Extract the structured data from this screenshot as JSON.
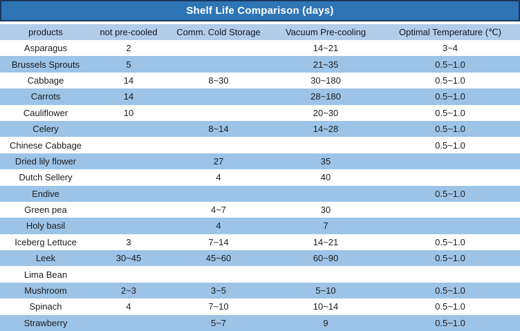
{
  "title": "Shelf Life Comparison (days)",
  "colors": {
    "title_bar_bg": "#2e75b6",
    "title_bar_border": "#17375e",
    "title_text": "#ffffff",
    "header_row_bg": "#b1cdea",
    "stripe_row_bg": "#9dc3e6",
    "white_row_bg": "#ffffff",
    "body_text": "#1c1c1c"
  },
  "chart_data": {
    "type": "table",
    "title": "Shelf Life Comparison (days)",
    "columns": [
      "products",
      "not pre-cooled",
      "Comm. Cold Storage",
      "Vacuum Pre-cooling",
      "Optimal Temperature (℃)"
    ],
    "rows": [
      [
        "Asparagus",
        "2",
        "",
        "14~21",
        "3~4"
      ],
      [
        "Brussels Sprouts",
        "5",
        "",
        "21~35",
        "0.5~1.0"
      ],
      [
        "Cabbage",
        "14",
        "8~30",
        "30~180",
        "0.5~1.0"
      ],
      [
        "Carrots",
        "14",
        "",
        "28~180",
        "0.5~1.0"
      ],
      [
        "Cauliflower",
        "10",
        "",
        "20~30",
        "0.5~1.0"
      ],
      [
        "Celery",
        "",
        "8~14",
        "14~28",
        "0.5~1.0"
      ],
      [
        "Chinese Cabbage",
        "",
        "",
        "",
        "0.5~1.0"
      ],
      [
        "Dried lily flower",
        "",
        "27",
        "35",
        ""
      ],
      [
        "Dutch Sellery",
        "",
        "4",
        "40",
        ""
      ],
      [
        "Endive",
        "",
        "",
        "",
        "0.5~1.0"
      ],
      [
        "Green pea",
        "",
        "4~7",
        "30",
        ""
      ],
      [
        "Holy basil",
        "",
        "4",
        "7",
        ""
      ],
      [
        "Iceberg Lettuce",
        "3",
        "7~14",
        "14~21",
        "0.5~1.0"
      ],
      [
        "Leek",
        "30~45",
        "45~60",
        "60~90",
        "0.5~1.0"
      ],
      [
        "Lima Bean",
        "",
        "",
        "",
        ""
      ],
      [
        "Mushroom",
        "2~3",
        "3~5",
        "5~10",
        "0.5~1.0"
      ],
      [
        "Spinach",
        "4",
        "7~10",
        "10~14",
        "0.5~1.0"
      ],
      [
        "Strawberry",
        "",
        "5~7",
        "9",
        "0.5~1.0"
      ]
    ]
  }
}
